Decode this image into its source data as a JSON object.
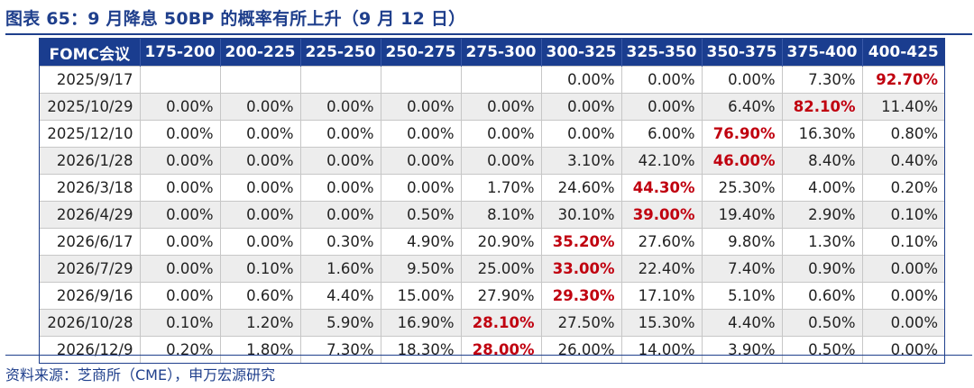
{
  "title": "图表 65：9 月降息 50BP 的概率有所上升（9 月 12 日）",
  "source": "资料来源：芝商所（CME），申万宏源研究",
  "table": {
    "headers": [
      "FOMC会议",
      "175-200",
      "200-225",
      "225-250",
      "250-275",
      "275-300",
      "300-325",
      "325-350",
      "350-375",
      "375-400",
      "400-425"
    ],
    "rows": [
      {
        "date": "2025/9/17",
        "values": [
          "",
          "",
          "",
          "",
          "",
          "0.00%",
          "0.00%",
          "0.00%",
          "7.30%",
          "92.70%"
        ],
        "highlight": 9
      },
      {
        "date": "2025/10/29",
        "values": [
          "0.00%",
          "0.00%",
          "0.00%",
          "0.00%",
          "0.00%",
          "0.00%",
          "0.00%",
          "6.40%",
          "82.10%",
          "11.40%"
        ],
        "highlight": 8
      },
      {
        "date": "2025/12/10",
        "values": [
          "0.00%",
          "0.00%",
          "0.00%",
          "0.00%",
          "0.00%",
          "0.00%",
          "6.00%",
          "76.90%",
          "16.30%",
          "0.80%"
        ],
        "highlight": 7
      },
      {
        "date": "2026/1/28",
        "values": [
          "0.00%",
          "0.00%",
          "0.00%",
          "0.00%",
          "0.00%",
          "3.10%",
          "42.10%",
          "46.00%",
          "8.40%",
          "0.40%"
        ],
        "highlight": 7
      },
      {
        "date": "2026/3/18",
        "values": [
          "0.00%",
          "0.00%",
          "0.00%",
          "0.00%",
          "1.70%",
          "24.60%",
          "44.30%",
          "25.30%",
          "4.00%",
          "0.20%"
        ],
        "highlight": 6
      },
      {
        "date": "2026/4/29",
        "values": [
          "0.00%",
          "0.00%",
          "0.00%",
          "0.50%",
          "8.10%",
          "30.10%",
          "39.00%",
          "19.40%",
          "2.90%",
          "0.10%"
        ],
        "highlight": 6
      },
      {
        "date": "2026/6/17",
        "values": [
          "0.00%",
          "0.00%",
          "0.30%",
          "4.90%",
          "20.90%",
          "35.20%",
          "27.60%",
          "9.80%",
          "1.30%",
          "0.10%"
        ],
        "highlight": 5
      },
      {
        "date": "2026/7/29",
        "values": [
          "0.00%",
          "0.10%",
          "1.60%",
          "9.50%",
          "25.00%",
          "33.00%",
          "22.40%",
          "7.40%",
          "0.90%",
          "0.00%"
        ],
        "highlight": 5
      },
      {
        "date": "2026/9/16",
        "values": [
          "0.00%",
          "0.60%",
          "4.40%",
          "15.00%",
          "27.90%",
          "29.30%",
          "17.10%",
          "5.10%",
          "0.60%",
          "0.00%"
        ],
        "highlight": 5
      },
      {
        "date": "2026/10/28",
        "values": [
          "0.10%",
          "1.20%",
          "5.90%",
          "16.90%",
          "28.10%",
          "27.50%",
          "15.30%",
          "4.40%",
          "0.50%",
          "0.00%"
        ],
        "highlight": 4
      },
      {
        "date": "2026/12/9",
        "values": [
          "0.20%",
          "1.80%",
          "7.30%",
          "18.30%",
          "28.00%",
          "26.00%",
          "14.00%",
          "3.90%",
          "0.50%",
          "0.00%"
        ],
        "highlight": 4
      }
    ]
  },
  "colors": {
    "header_bg": "#1a3d8f",
    "title": "#1f3f8c",
    "highlight": "#c0000f",
    "row_alt": "#ededed"
  }
}
